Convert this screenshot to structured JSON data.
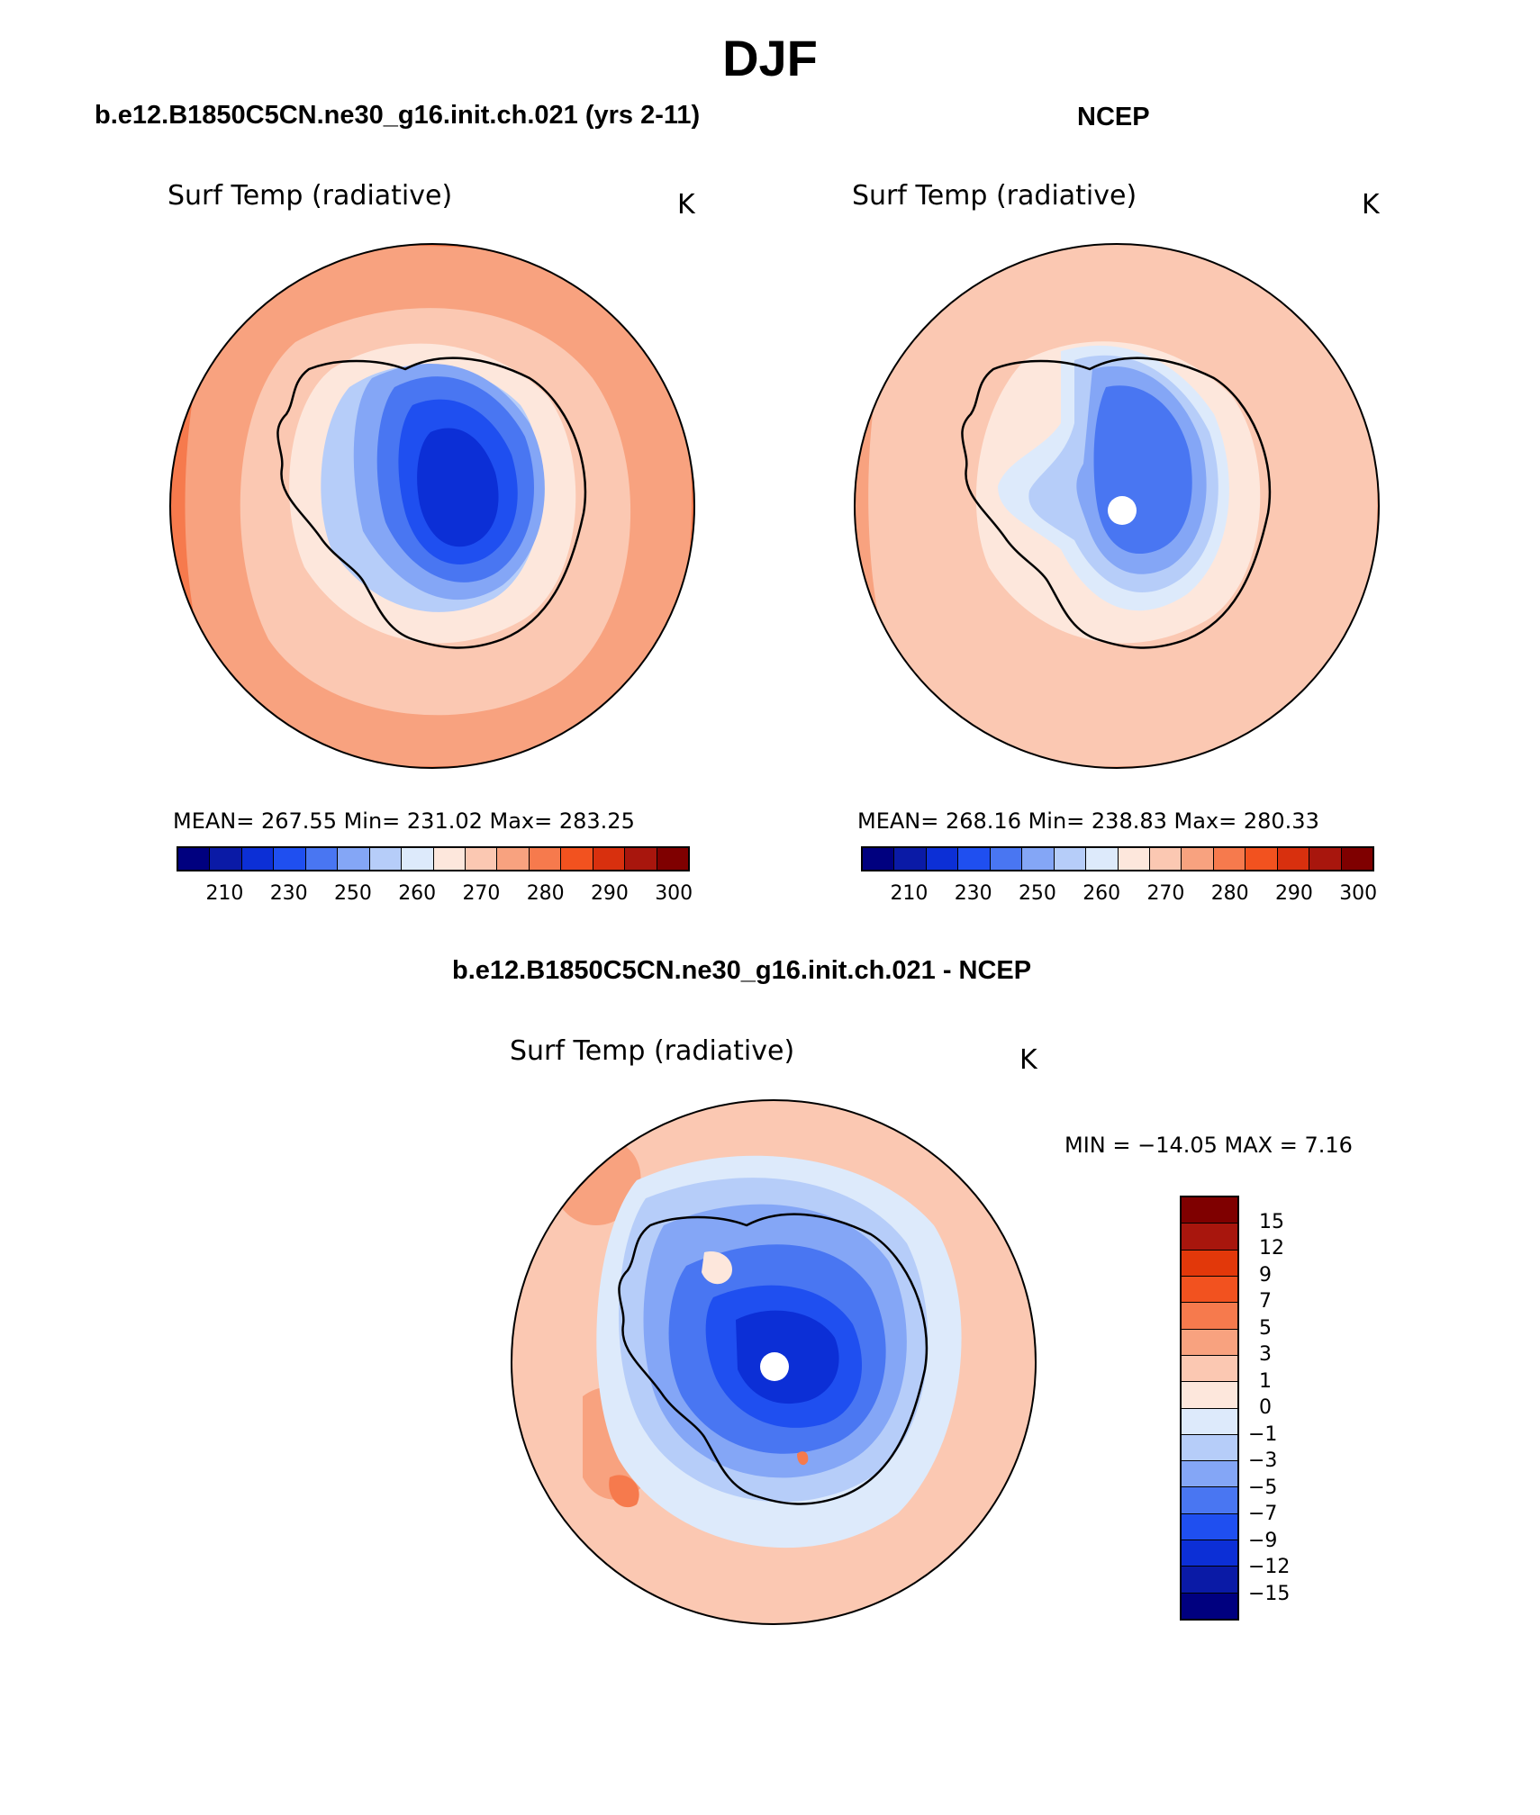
{
  "title": "DJF",
  "panels": [
    {
      "title": "b.e12.B1850C5CN.ne30_g16.init.ch.021 (yrs 2-11)",
      "variable": "Surf Temp (radiative)",
      "units": "K",
      "stats": "MEAN= 267.55   Min= 231.02   Max= 283.25"
    },
    {
      "title": "NCEP",
      "variable": "Surf Temp (radiative)",
      "units": "K",
      "stats": "MEAN= 268.16   Min= 238.83   Max= 280.33"
    },
    {
      "title": "b.e12.B1850C5CN.ne30_g16.init.ch.021 - NCEP",
      "variable": "Surf Temp (radiative)",
      "units": "K",
      "stats": "MIN = −14.05 MAX =    7.16"
    }
  ],
  "abs_colorbar": {
    "ticks": [
      "210",
      "230",
      "250",
      "260",
      "270",
      "280",
      "290",
      "300"
    ],
    "colors": [
      "#00007f",
      "#0a1aa6",
      "#0c2fd6",
      "#1f4ff0",
      "#4976f2",
      "#84a6f6",
      "#b6cdf9",
      "#ddeafb",
      "#fde7dc",
      "#fbc8b2",
      "#f8a27f",
      "#f67a4d",
      "#f2521f",
      "#d8300e",
      "#a8160d",
      "#7f0000"
    ]
  },
  "diff_colorbar": {
    "ticks": [
      "15",
      "12",
      "9",
      "7",
      "5",
      "3",
      "1",
      "0",
      "−1",
      "−3",
      "−5",
      "−7",
      "−9",
      "−12",
      "−15"
    ],
    "colors": [
      "#7f0000",
      "#a8160d",
      "#e2380a",
      "#f2521f",
      "#f67a4d",
      "#f8a27f",
      "#fbc8b2",
      "#fde7dc",
      "#ddeafb",
      "#b6cdf9",
      "#84a6f6",
      "#4976f2",
      "#1f4ff0",
      "#0c2fd6",
      "#0a1aa6",
      "#00007f"
    ]
  }
}
